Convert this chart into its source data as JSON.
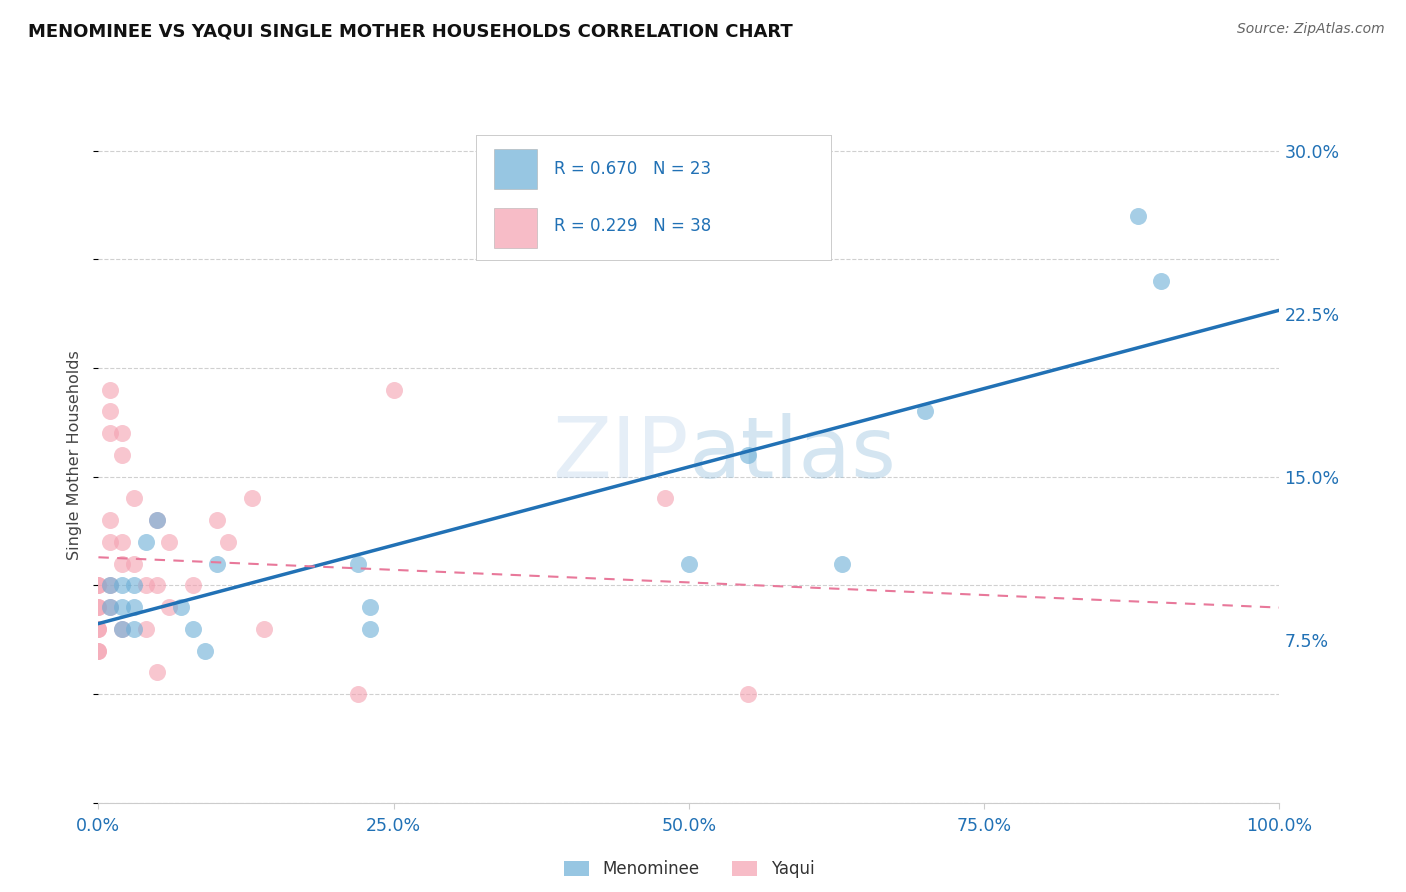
{
  "title": "MENOMINEE VS YAQUI SINGLE MOTHER HOUSEHOLDS CORRELATION CHART",
  "source": "Source: ZipAtlas.com",
  "ylabel_label": "Single Mother Households",
  "x_tick_vals": [
    0,
    25,
    50,
    75,
    100
  ],
  "y_tick_vals": [
    7.5,
    15.0,
    22.5,
    30.0
  ],
  "xlim": [
    0,
    100
  ],
  "ylim": [
    0,
    32
  ],
  "menominee_R": "0.670",
  "menominee_N": "23",
  "yaqui_R": "0.229",
  "yaqui_N": "38",
  "menominee_color": "#6baed6",
  "yaqui_color": "#f4a0b0",
  "menominee_line_color": "#2171b5",
  "yaqui_line_color": "#e8789a",
  "background_color": "#ffffff",
  "grid_color": "#d0d0d0",
  "menominee_x": [
    1,
    1,
    2,
    2,
    2,
    3,
    3,
    3,
    4,
    5,
    7,
    8,
    9,
    10,
    22,
    23,
    23,
    50,
    55,
    63,
    70,
    88,
    90
  ],
  "menominee_y": [
    10.0,
    9.0,
    10.0,
    9.0,
    8.0,
    10.0,
    9.0,
    8.0,
    12.0,
    13.0,
    9.0,
    8.0,
    7.0,
    11.0,
    11.0,
    9.0,
    8.0,
    11.0,
    16.0,
    11.0,
    18.0,
    27.0,
    24.0
  ],
  "yaqui_x": [
    0,
    0,
    0,
    0,
    0,
    0,
    0,
    0,
    1,
    1,
    1,
    1,
    1,
    1,
    1,
    2,
    2,
    2,
    2,
    2,
    3,
    3,
    4,
    4,
    5,
    5,
    5,
    6,
    6,
    8,
    10,
    11,
    13,
    14,
    22,
    25,
    48,
    55
  ],
  "yaqui_y": [
    10.0,
    10.0,
    9.0,
    9.0,
    8.0,
    8.0,
    7.0,
    7.0,
    19.0,
    18.0,
    17.0,
    13.0,
    12.0,
    10.0,
    9.0,
    17.0,
    16.0,
    12.0,
    11.0,
    8.0,
    14.0,
    11.0,
    10.0,
    8.0,
    13.0,
    10.0,
    6.0,
    12.0,
    9.0,
    10.0,
    13.0,
    12.0,
    14.0,
    8.0,
    5.0,
    19.0,
    14.0,
    5.0
  ]
}
